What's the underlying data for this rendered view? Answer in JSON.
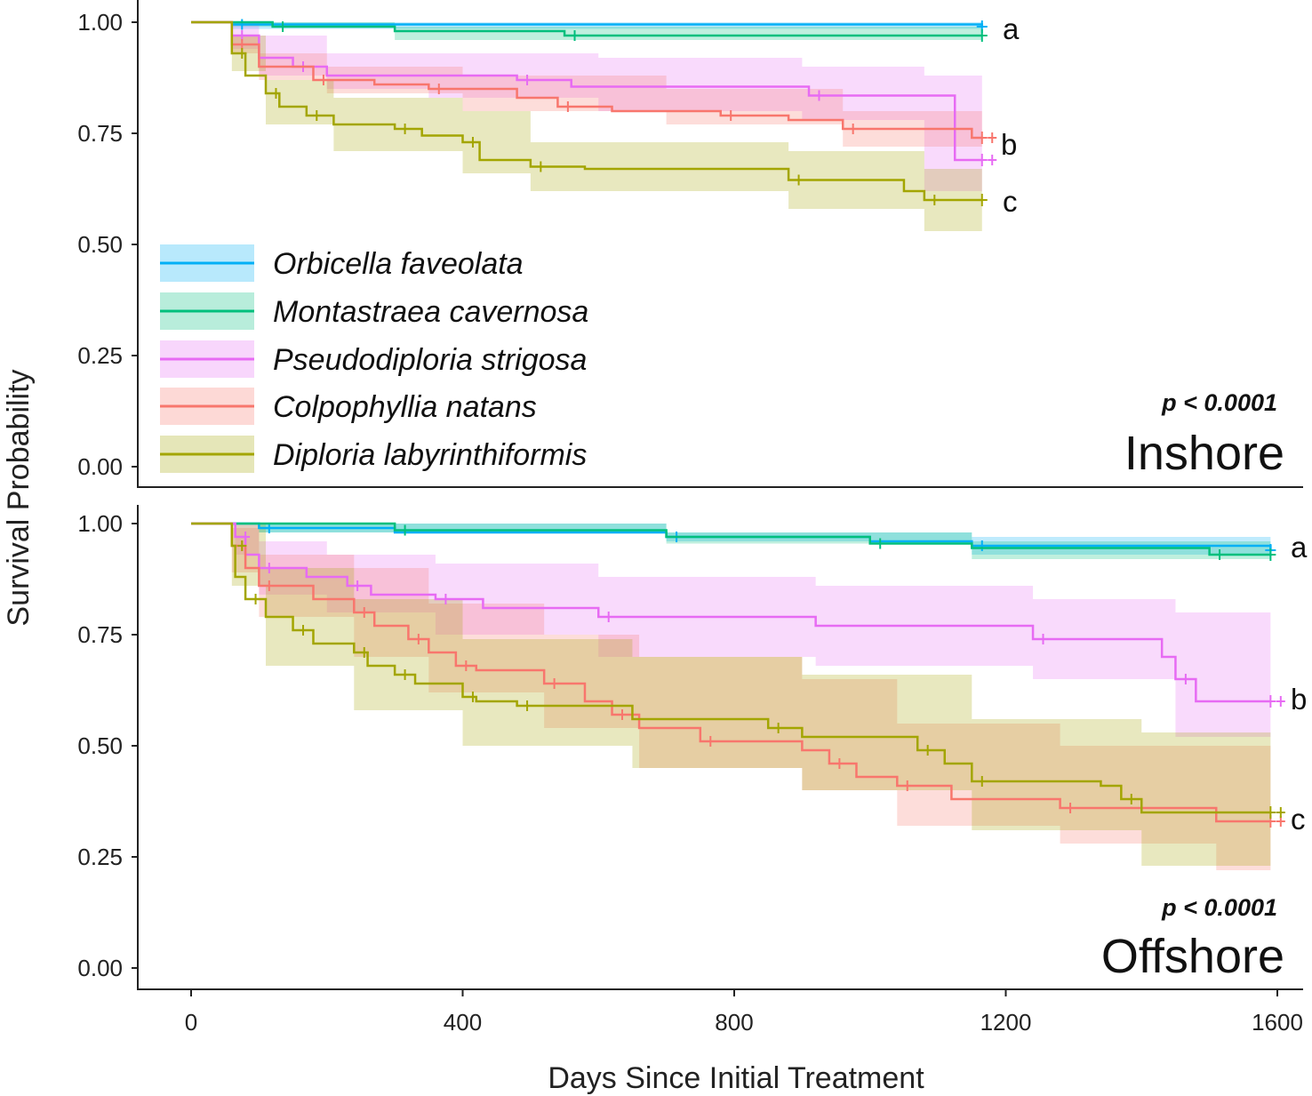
{
  "chart_data": {
    "type": "line",
    "subtype": "kaplan-meier survival curves with confidence bands",
    "ylabel": "Survival Probability",
    "xlabel": "Days Since Initial Treatment",
    "x_ticks": [
      "0",
      "400",
      "800",
      "1200",
      "1600"
    ],
    "x_tick_values": [
      0,
      400,
      800,
      1200,
      1600
    ],
    "y_ticks": [
      "0.00",
      "0.25",
      "0.50",
      "0.75",
      "1.00"
    ],
    "y_tick_values": [
      0,
      0.25,
      0.5,
      0.75,
      1
    ],
    "xlim": [
      0,
      1600
    ],
    "ylim": [
      0,
      1
    ],
    "legend": {
      "placement": "inside top panel, lower-left",
      "entries": [
        {
          "name": "Orbicella faveolata",
          "color": "#00B0F6"
        },
        {
          "name": "Montastraea cavernosa",
          "color": "#00BF7D"
        },
        {
          "name": "Pseudodiploria strigosa",
          "color": "#E76BF3"
        },
        {
          "name": "Colpophyllia natans",
          "color": "#F8766D"
        },
        {
          "name": "Diploria labyrinthiformis",
          "color": "#A3A500"
        }
      ]
    },
    "panels": [
      {
        "title": "Inshore",
        "p_value": "p < 0.0001",
        "group_letters": [
          "a",
          "b",
          "c"
        ],
        "letter_levels": [
          0.98,
          0.72,
          0.6
        ],
        "series": [
          {
            "name": "Orbicella faveolata",
            "steps": [
              [
                0,
                1
              ],
              [
                60,
                0.995
              ],
              [
                1165,
                0.99
              ]
            ],
            "band": [
              [
                0,
                1,
                1
              ],
              [
                60,
                0.985,
                1
              ],
              [
                1165,
                0.98,
                1
              ]
            ]
          },
          {
            "name": "Montastraea cavernosa",
            "steps": [
              [
                0,
                1
              ],
              [
                120,
                0.99
              ],
              [
                300,
                0.98
              ],
              [
                550,
                0.97
              ],
              [
                1165,
                0.97
              ]
            ],
            "band": [
              [
                0,
                1,
                1
              ],
              [
                60,
                0.99,
                1
              ],
              [
                300,
                0.96,
                0.99
              ],
              [
                1165,
                0.955,
                0.985
              ]
            ]
          },
          {
            "name": "Pseudodiploria strigosa",
            "steps": [
              [
                0,
                1
              ],
              [
                60,
                0.97
              ],
              [
                100,
                0.92
              ],
              [
                150,
                0.9
              ],
              [
                200,
                0.88
              ],
              [
                480,
                0.87
              ],
              [
                560,
                0.855
              ],
              [
                910,
                0.835
              ],
              [
                1125,
                0.69
              ],
              [
                1165,
                0.69
              ]
            ],
            "band": [
              [
                0,
                1,
                1
              ],
              [
                60,
                0.94,
                1
              ],
              [
                100,
                0.88,
                0.97
              ],
              [
                200,
                0.85,
                0.93
              ],
              [
                350,
                0.83,
                0.93
              ],
              [
                600,
                0.8,
                0.92
              ],
              [
                900,
                0.78,
                0.9
              ],
              [
                1080,
                0.62,
                0.88
              ],
              [
                1165,
                0.62,
                0.78
              ]
            ]
          },
          {
            "name": "Colpophyllia natans",
            "steps": [
              [
                0,
                1
              ],
              [
                60,
                0.95
              ],
              [
                100,
                0.9
              ],
              [
                180,
                0.87
              ],
              [
                270,
                0.86
              ],
              [
                350,
                0.85
              ],
              [
                480,
                0.83
              ],
              [
                540,
                0.81
              ],
              [
                620,
                0.8
              ],
              [
                780,
                0.79
              ],
              [
                880,
                0.78
              ],
              [
                960,
                0.76
              ],
              [
                1150,
                0.74
              ],
              [
                1165,
                0.74
              ]
            ],
            "band": [
              [
                0,
                1,
                1
              ],
              [
                60,
                0.93,
                0.97
              ],
              [
                100,
                0.87,
                0.93
              ],
              [
                200,
                0.84,
                0.9
              ],
              [
                400,
                0.8,
                0.88
              ],
              [
                700,
                0.77,
                0.85
              ],
              [
                960,
                0.72,
                0.8
              ],
              [
                1165,
                0.7,
                0.78
              ]
            ]
          },
          {
            "name": "Diploria labyrinthiformis",
            "steps": [
              [
                0,
                1
              ],
              [
                60,
                0.93
              ],
              [
                80,
                0.88
              ],
              [
                110,
                0.84
              ],
              [
                130,
                0.81
              ],
              [
                170,
                0.79
              ],
              [
                210,
                0.77
              ],
              [
                300,
                0.76
              ],
              [
                340,
                0.745
              ],
              [
                400,
                0.73
              ],
              [
                425,
                0.69
              ],
              [
                500,
                0.675
              ],
              [
                580,
                0.67
              ],
              [
                880,
                0.645
              ],
              [
                1050,
                0.62
              ],
              [
                1080,
                0.6
              ],
              [
                1165,
                0.6
              ]
            ],
            "band": [
              [
                0,
                1,
                1
              ],
              [
                60,
                0.89,
                0.97
              ],
              [
                110,
                0.77,
                0.87
              ],
              [
                210,
                0.71,
                0.83
              ],
              [
                400,
                0.66,
                0.8
              ],
              [
                500,
                0.62,
                0.73
              ],
              [
                880,
                0.58,
                0.71
              ],
              [
                1080,
                0.53,
                0.67
              ],
              [
                1165,
                0.52,
                0.67
              ]
            ]
          }
        ]
      },
      {
        "title": "Offshore",
        "p_value": "p < 0.0001",
        "group_letters": [
          "a",
          "b",
          "c"
        ],
        "letter_levels": [
          0.95,
          0.61,
          0.34
        ],
        "series": [
          {
            "name": "Orbicella faveolata",
            "steps": [
              [
                0,
                1
              ],
              [
                100,
                0.99
              ],
              [
                300,
                0.98
              ],
              [
                700,
                0.97
              ],
              [
                1000,
                0.96
              ],
              [
                1150,
                0.95
              ],
              [
                1590,
                0.94
              ]
            ],
            "band": [
              [
                0,
                1,
                1
              ],
              [
                100,
                0.98,
                1
              ],
              [
                700,
                0.96,
                0.98
              ],
              [
                1150,
                0.93,
                0.97
              ],
              [
                1590,
                0.92,
                0.96
              ]
            ]
          },
          {
            "name": "Montastraea cavernosa",
            "steps": [
              [
                0,
                1
              ],
              [
                300,
                0.985
              ],
              [
                700,
                0.97
              ],
              [
                1000,
                0.955
              ],
              [
                1150,
                0.945
              ],
              [
                1500,
                0.93
              ],
              [
                1590,
                0.93
              ]
            ],
            "band": [
              [
                0,
                1,
                1
              ],
              [
                100,
                0.98,
                1
              ],
              [
                700,
                0.955,
                0.98
              ],
              [
                1150,
                0.92,
                0.96
              ],
              [
                1590,
                0.91,
                0.955
              ]
            ]
          },
          {
            "name": "Pseudodiploria strigosa",
            "steps": [
              [
                0,
                1
              ],
              [
                65,
                0.97
              ],
              [
                80,
                0.93
              ],
              [
                100,
                0.9
              ],
              [
                170,
                0.88
              ],
              [
                230,
                0.86
              ],
              [
                265,
                0.84
              ],
              [
                360,
                0.83
              ],
              [
                430,
                0.81
              ],
              [
                600,
                0.79
              ],
              [
                920,
                0.77
              ],
              [
                1240,
                0.74
              ],
              [
                1430,
                0.7
              ],
              [
                1450,
                0.65
              ],
              [
                1480,
                0.6
              ],
              [
                1590,
                0.6
              ]
            ],
            "band": [
              [
                0,
                1,
                1
              ],
              [
                65,
                0.93,
                1
              ],
              [
                100,
                0.84,
                0.96
              ],
              [
                200,
                0.8,
                0.93
              ],
              [
                360,
                0.75,
                0.91
              ],
              [
                600,
                0.7,
                0.88
              ],
              [
                920,
                0.68,
                0.86
              ],
              [
                1240,
                0.65,
                0.83
              ],
              [
                1450,
                0.52,
                0.8
              ],
              [
                1590,
                0.5,
                0.79
              ]
            ]
          },
          {
            "name": "Colpophyllia natans",
            "steps": [
              [
                0,
                1
              ],
              [
                60,
                0.95
              ],
              [
                80,
                0.9
              ],
              [
                100,
                0.86
              ],
              [
                180,
                0.83
              ],
              [
                240,
                0.8
              ],
              [
                270,
                0.77
              ],
              [
                320,
                0.74
              ],
              [
                350,
                0.71
              ],
              [
                390,
                0.68
              ],
              [
                420,
                0.67
              ],
              [
                520,
                0.64
              ],
              [
                580,
                0.6
              ],
              [
                620,
                0.57
              ],
              [
                660,
                0.54
              ],
              [
                750,
                0.51
              ],
              [
                900,
                0.49
              ],
              [
                940,
                0.46
              ],
              [
                980,
                0.43
              ],
              [
                1040,
                0.41
              ],
              [
                1120,
                0.38
              ],
              [
                1280,
                0.36
              ],
              [
                1510,
                0.33
              ],
              [
                1590,
                0.33
              ]
            ],
            "band": [
              [
                0,
                1,
                1
              ],
              [
                60,
                0.89,
                0.99
              ],
              [
                100,
                0.79,
                0.93
              ],
              [
                240,
                0.7,
                0.9
              ],
              [
                350,
                0.62,
                0.82
              ],
              [
                520,
                0.54,
                0.75
              ],
              [
                660,
                0.45,
                0.7
              ],
              [
                900,
                0.4,
                0.65
              ],
              [
                1040,
                0.32,
                0.55
              ],
              [
                1280,
                0.28,
                0.5
              ],
              [
                1510,
                0.22,
                0.5
              ],
              [
                1590,
                0.22,
                0.5
              ]
            ]
          },
          {
            "name": "Diploria labyrinthiformis",
            "steps": [
              [
                0,
                1
              ],
              [
                60,
                0.95
              ],
              [
                65,
                0.88
              ],
              [
                80,
                0.83
              ],
              [
                110,
                0.79
              ],
              [
                150,
                0.76
              ],
              [
                180,
                0.73
              ],
              [
                240,
                0.71
              ],
              [
                260,
                0.68
              ],
              [
                300,
                0.66
              ],
              [
                330,
                0.64
              ],
              [
                400,
                0.61
              ],
              [
                420,
                0.6
              ],
              [
                480,
                0.59
              ],
              [
                650,
                0.56
              ],
              [
                850,
                0.54
              ],
              [
                900,
                0.52
              ],
              [
                1070,
                0.49
              ],
              [
                1110,
                0.46
              ],
              [
                1150,
                0.42
              ],
              [
                1340,
                0.41
              ],
              [
                1370,
                0.38
              ],
              [
                1400,
                0.35
              ],
              [
                1590,
                0.35
              ]
            ],
            "band": [
              [
                0,
                1,
                1
              ],
              [
                60,
                0.86,
                1
              ],
              [
                110,
                0.68,
                0.9
              ],
              [
                240,
                0.58,
                0.83
              ],
              [
                400,
                0.5,
                0.74
              ],
              [
                650,
                0.45,
                0.7
              ],
              [
                900,
                0.4,
                0.66
              ],
              [
                1150,
                0.31,
                0.56
              ],
              [
                1400,
                0.23,
                0.53
              ],
              [
                1590,
                0.23,
                0.53
              ]
            ]
          }
        ]
      }
    ]
  }
}
